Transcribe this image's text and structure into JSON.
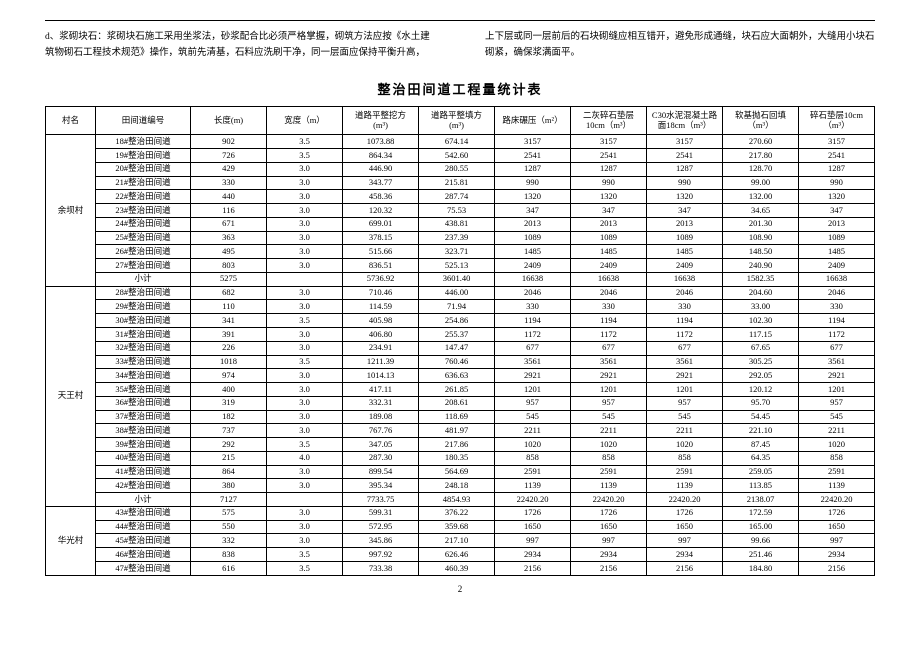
{
  "note_left": "d、浆砌块石：浆砌块石施工采用坐浆法，砂浆配合比必须严格掌握，砌筑方法应按《水土建筑物砌石工程技术规范》操作，筑前先清基，石料应洗刷干净，同一层面应保持平衡升高，",
  "note_right": "上下层或同一层前后的石块砌缝应相互错开，避免形成通缝，块石应大面朝外，大缝用小块石砌紧，确保浆满面平。",
  "title": "整治田间道工程量统计表",
  "headers": [
    "村名",
    "田间道编号",
    "长度(m)",
    "宽度（m）",
    "道路平整挖方\n(m³)",
    "道路平整填方\n(m³)",
    "路床碾压（m²）",
    "二灰碎石垫层\n10cm（m³）",
    "C30水泥混凝土路\n面18cm（m³）",
    "软基抛石回填\n（m³）",
    "碎石垫层10cm\n（m³）"
  ],
  "groups": [
    {
      "village": "余坝村",
      "rows": [
        [
          "18#整治田间道",
          "902",
          "3.5",
          "1073.88",
          "674.14",
          "3157",
          "3157",
          "3157",
          "270.60",
          "3157"
        ],
        [
          "19#整治田间道",
          "726",
          "3.5",
          "864.34",
          "542.60",
          "2541",
          "2541",
          "2541",
          "217.80",
          "2541"
        ],
        [
          "20#整治田间道",
          "429",
          "3.0",
          "446.90",
          "280.55",
          "1287",
          "1287",
          "1287",
          "128.70",
          "1287"
        ],
        [
          "21#整治田间道",
          "330",
          "3.0",
          "343.77",
          "215.81",
          "990",
          "990",
          "990",
          "99.00",
          "990"
        ],
        [
          "22#整治田间道",
          "440",
          "3.0",
          "458.36",
          "287.74",
          "1320",
          "1320",
          "1320",
          "132.00",
          "1320"
        ],
        [
          "23#整治田间道",
          "116",
          "3.0",
          "120.32",
          "75.53",
          "347",
          "347",
          "347",
          "34.65",
          "347"
        ],
        [
          "24#整治田间道",
          "671",
          "3.0",
          "699.01",
          "438.81",
          "2013",
          "2013",
          "2013",
          "201.30",
          "2013"
        ],
        [
          "25#整治田间道",
          "363",
          "3.0",
          "378.15",
          "237.39",
          "1089",
          "1089",
          "1089",
          "108.90",
          "1089"
        ],
        [
          "26#整治田间道",
          "495",
          "3.0",
          "515.66",
          "323.71",
          "1485",
          "1485",
          "1485",
          "148.50",
          "1485"
        ],
        [
          "27#整治田间道",
          "803",
          "3.0",
          "836.51",
          "525.13",
          "2409",
          "2409",
          "2409",
          "240.90",
          "2409"
        ]
      ],
      "subtotal": [
        "小计",
        "5275",
        "",
        "5736.92",
        "3601.40",
        "16638",
        "16638",
        "16638",
        "1582.35",
        "16638"
      ]
    },
    {
      "village": "天王村",
      "rows": [
        [
          "28#整治田间道",
          "682",
          "3.0",
          "710.46",
          "446.00",
          "2046",
          "2046",
          "2046",
          "204.60",
          "2046"
        ],
        [
          "29#整治田间道",
          "110",
          "3.0",
          "114.59",
          "71.94",
          "330",
          "330",
          "330",
          "33.00",
          "330"
        ],
        [
          "30#整治田间道",
          "341",
          "3.5",
          "405.98",
          "254.86",
          "1194",
          "1194",
          "1194",
          "102.30",
          "1194"
        ],
        [
          "31#整治田间道",
          "391",
          "3.0",
          "406.80",
          "255.37",
          "1172",
          "1172",
          "1172",
          "117.15",
          "1172"
        ],
        [
          "32#整治田间道",
          "226",
          "3.0",
          "234.91",
          "147.47",
          "677",
          "677",
          "677",
          "67.65",
          "677"
        ],
        [
          "33#整治田间道",
          "1018",
          "3.5",
          "1211.39",
          "760.46",
          "3561",
          "3561",
          "3561",
          "305.25",
          "3561"
        ],
        [
          "34#整治田间道",
          "974",
          "3.0",
          "1014.13",
          "636.63",
          "2921",
          "2921",
          "2921",
          "292.05",
          "2921"
        ],
        [
          "35#整治田间道",
          "400",
          "3.0",
          "417.11",
          "261.85",
          "1201",
          "1201",
          "1201",
          "120.12",
          "1201"
        ],
        [
          "36#整治田间道",
          "319",
          "3.0",
          "332.31",
          "208.61",
          "957",
          "957",
          "957",
          "95.70",
          "957"
        ],
        [
          "37#整治田间道",
          "182",
          "3.0",
          "189.08",
          "118.69",
          "545",
          "545",
          "545",
          "54.45",
          "545"
        ],
        [
          "38#整治田间道",
          "737",
          "3.0",
          "767.76",
          "481.97",
          "2211",
          "2211",
          "2211",
          "221.10",
          "2211"
        ],
        [
          "39#整治田间道",
          "292",
          "3.5",
          "347.05",
          "217.86",
          "1020",
          "1020",
          "1020",
          "87.45",
          "1020"
        ],
        [
          "40#整治田间道",
          "215",
          "4.0",
          "287.30",
          "180.35",
          "858",
          "858",
          "858",
          "64.35",
          "858"
        ],
        [
          "41#整治田间道",
          "864",
          "3.0",
          "899.54",
          "564.69",
          "2591",
          "2591",
          "2591",
          "259.05",
          "2591"
        ],
        [
          "42#整治田间道",
          "380",
          "3.0",
          "395.34",
          "248.18",
          "1139",
          "1139",
          "1139",
          "113.85",
          "1139"
        ]
      ],
      "subtotal": [
        "小计",
        "7127",
        "",
        "7733.75",
        "4854.93",
        "22420.20",
        "22420.20",
        "22420.20",
        "2138.07",
        "22420.20"
      ]
    },
    {
      "village": "华光村",
      "rows": [
        [
          "43#整治田间道",
          "575",
          "3.0",
          "599.31",
          "376.22",
          "1726",
          "1726",
          "1726",
          "172.59",
          "1726"
        ],
        [
          "44#整治田间道",
          "550",
          "3.0",
          "572.95",
          "359.68",
          "1650",
          "1650",
          "1650",
          "165.00",
          "1650"
        ],
        [
          "45#整治田间道",
          "332",
          "3.0",
          "345.86",
          "217.10",
          "997",
          "997",
          "997",
          "99.66",
          "997"
        ],
        [
          "46#整治田间道",
          "838",
          "3.5",
          "997.92",
          "626.46",
          "2934",
          "2934",
          "2934",
          "251.46",
          "2934"
        ],
        [
          "47#整治田间道",
          "616",
          "3.5",
          "733.38",
          "460.39",
          "2156",
          "2156",
          "2156",
          "184.80",
          "2156"
        ]
      ]
    }
  ],
  "page_number": "2"
}
